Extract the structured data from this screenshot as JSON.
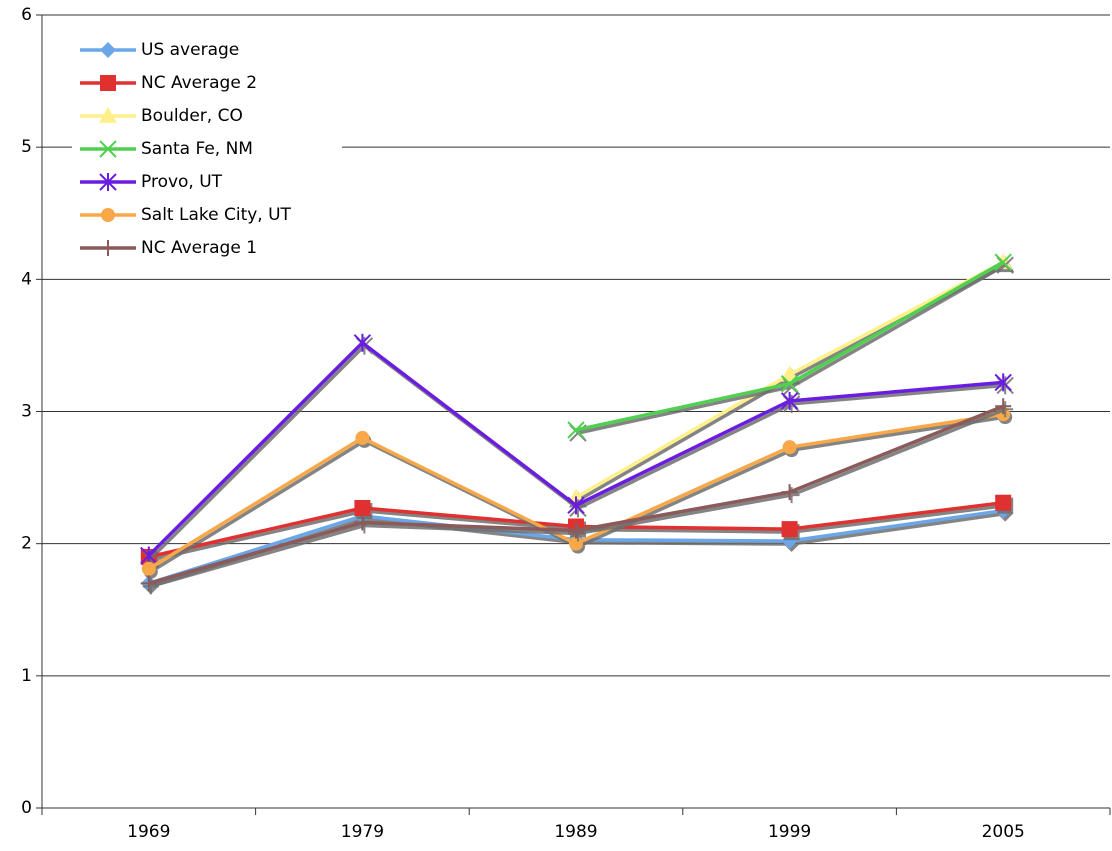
{
  "chart_data": {
    "type": "line",
    "categories": [
      "1969",
      "1979",
      "1989",
      "1999",
      "2005"
    ],
    "series": [
      {
        "name": "US average",
        "color": "#6aa6e8",
        "marker": "diamond",
        "values": [
          1.7,
          2.21,
          2.03,
          2.02,
          2.25
        ]
      },
      {
        "name": "NC Average 2",
        "color": "#e03030",
        "marker": "square",
        "values": [
          1.9,
          2.27,
          2.13,
          2.11,
          2.31
        ]
      },
      {
        "name": "Boulder, CO",
        "color": "#fff08a",
        "marker": "triangle",
        "values": [
          null,
          null,
          2.35,
          3.28,
          4.13
        ]
      },
      {
        "name": "Santa Fe, NM",
        "color": "#50d050",
        "marker": "x",
        "values": [
          null,
          null,
          2.86,
          3.21,
          4.13
        ]
      },
      {
        "name": "Provo, UT",
        "color": "#6a1de0",
        "marker": "star",
        "values": [
          1.91,
          3.52,
          2.29,
          3.08,
          3.22
        ]
      },
      {
        "name": "Salt Lake City, UT",
        "color": "#f8a848",
        "marker": "circle",
        "values": [
          1.81,
          2.8,
          2.0,
          2.73,
          2.98
        ]
      },
      {
        "name": "NC Average 1",
        "color": "#8b5a5a",
        "marker": "plus",
        "values": [
          1.7,
          2.16,
          2.1,
          2.39,
          3.04
        ]
      }
    ],
    "ylim": [
      0,
      6
    ],
    "yticks": [
      0,
      1,
      2,
      3,
      4,
      5,
      6
    ],
    "grid": true,
    "legend": "upper-left"
  }
}
